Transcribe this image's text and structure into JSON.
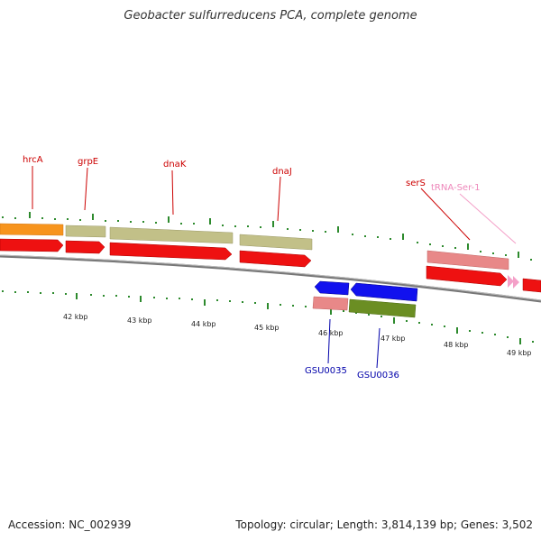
{
  "title": "Geobacter sulfurreducens PCA, complete genome",
  "footer": {
    "accession": "Accession: NC_002939",
    "stats": "Topology: circular; Length: 3,814,139 bp; Genes: 3,502"
  },
  "colors": {
    "gene_label_top": "#cc0000",
    "trna_label": "#ee88bb",
    "gene_label_bottom": "#0000aa",
    "cds_red": "#ee1111",
    "gene_khaki": "#c2c088",
    "gene_orange": "#f7941d",
    "gene_pink": "#e88888",
    "gene_blue": "#1111ee",
    "gene_olive": "#6b8e23",
    "tick_green": "#2d8a2d",
    "backbone": "#777777"
  },
  "scale": {
    "ticks": [
      {
        "label": "42 kbp"
      },
      {
        "label": "43 kbp"
      },
      {
        "label": "44 kbp"
      },
      {
        "label": "45 kbp"
      },
      {
        "label": "46 kbp"
      },
      {
        "label": "47 kbp"
      },
      {
        "label": "48 kbp"
      },
      {
        "label": "49 kbp"
      }
    ]
  },
  "labels": {
    "top": [
      "hrcA",
      "grpE",
      "dnaK",
      "dnaJ",
      "serS"
    ],
    "trna": "tRNA-Ser-1",
    "bottom": [
      "GSU0035",
      "GSU0036"
    ]
  }
}
